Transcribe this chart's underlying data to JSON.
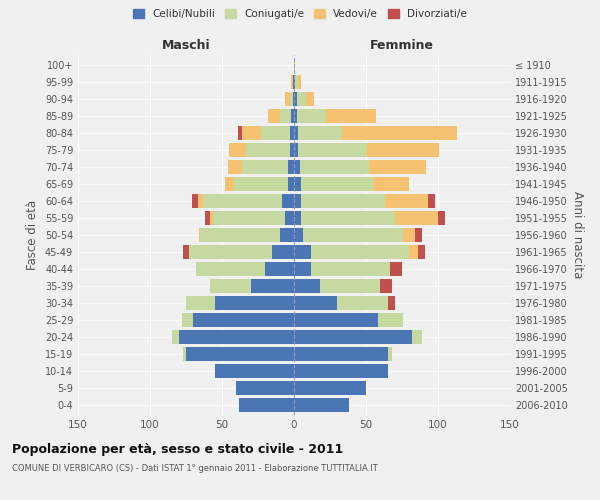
{
  "age_groups": [
    "0-4",
    "5-9",
    "10-14",
    "15-19",
    "20-24",
    "25-29",
    "30-34",
    "35-39",
    "40-44",
    "45-49",
    "50-54",
    "55-59",
    "60-64",
    "65-69",
    "70-74",
    "75-79",
    "80-84",
    "85-89",
    "90-94",
    "95-99",
    "100+"
  ],
  "birth_years": [
    "2006-2010",
    "2001-2005",
    "1996-2000",
    "1991-1995",
    "1986-1990",
    "1981-1985",
    "1976-1980",
    "1971-1975",
    "1966-1970",
    "1961-1965",
    "1956-1960",
    "1951-1955",
    "1946-1950",
    "1941-1945",
    "1936-1940",
    "1931-1935",
    "1926-1930",
    "1921-1925",
    "1916-1920",
    "1911-1915",
    "≤ 1910"
  ],
  "colors": {
    "celibi": "#4b76b5",
    "coniugati": "#c5d9a0",
    "vedovi": "#f5c271",
    "divorziati": "#c0504d"
  },
  "maschi": {
    "celibi": [
      38,
      40,
      55,
      75,
      80,
      70,
      55,
      30,
      20,
      15,
      10,
      6,
      8,
      4,
      4,
      3,
      3,
      2,
      1,
      1,
      0
    ],
    "coniugati": [
      0,
      0,
      0,
      2,
      5,
      8,
      20,
      28,
      48,
      58,
      55,
      50,
      55,
      38,
      32,
      30,
      20,
      8,
      2,
      0,
      0
    ],
    "vedovi": [
      0,
      0,
      0,
      0,
      0,
      0,
      0,
      0,
      0,
      0,
      1,
      2,
      4,
      6,
      10,
      12,
      13,
      8,
      3,
      1,
      0
    ],
    "divorziati": [
      0,
      0,
      0,
      0,
      0,
      0,
      0,
      0,
      0,
      4,
      0,
      4,
      4,
      0,
      0,
      0,
      3,
      0,
      0,
      0,
      0
    ]
  },
  "femmine": {
    "celibi": [
      38,
      50,
      65,
      65,
      82,
      58,
      30,
      18,
      12,
      12,
      6,
      5,
      5,
      5,
      4,
      3,
      3,
      2,
      2,
      1,
      0
    ],
    "coniugati": [
      0,
      0,
      0,
      3,
      7,
      18,
      35,
      42,
      55,
      68,
      70,
      65,
      58,
      50,
      48,
      48,
      30,
      20,
      6,
      2,
      0
    ],
    "vedovi": [
      0,
      0,
      0,
      0,
      0,
      0,
      0,
      0,
      0,
      6,
      8,
      30,
      30,
      25,
      40,
      50,
      80,
      35,
      6,
      2,
      1
    ],
    "divorziati": [
      0,
      0,
      0,
      0,
      0,
      0,
      5,
      8,
      8,
      5,
      5,
      5,
      5,
      0,
      0,
      0,
      0,
      0,
      0,
      0,
      0
    ]
  },
  "title": "Popolazione per età, sesso e stato civile - 2011",
  "subtitle": "COMUNE DI VERBICARO (CS) - Dati ISTAT 1° gennaio 2011 - Elaborazione TUTTITALIA.IT",
  "xlabel_left": "Maschi",
  "xlabel_right": "Femmine",
  "ylabel_left": "Fasce di età",
  "ylabel_right": "Anni di nascita",
  "xlim": 150,
  "legend_labels": [
    "Celibi/Nubili",
    "Coniugati/e",
    "Vedovi/e",
    "Divorziati/e"
  ],
  "background_color": "#f0f0f0"
}
